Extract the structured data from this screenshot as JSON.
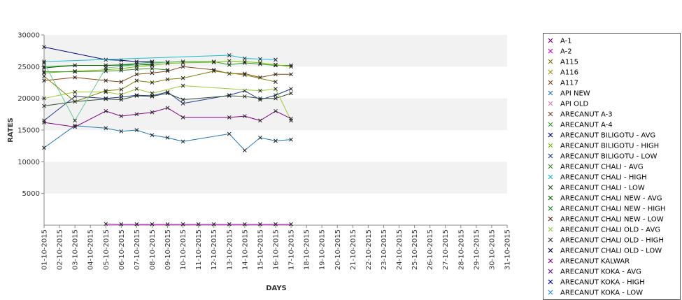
{
  "chart_data": {
    "type": "line",
    "xlabel": "DAYS",
    "ylabel": "RATES",
    "ylim": [
      0,
      30000
    ],
    "y_ticks": [
      5000,
      10000,
      15000,
      20000,
      25000,
      30000
    ],
    "grid": "alternating horizontal bands",
    "legend_position": "right",
    "categories": [
      "01-10-2015",
      "02-10-2015",
      "03-10-2015",
      "04-10-2015",
      "05-10-2015",
      "06-10-2015",
      "07-10-2015",
      "08-10-2015",
      "09-10-2015",
      "10-10-2015",
      "11-10-2015",
      "12-10-2015",
      "13-10-2015",
      "14-10-2015",
      "15-10-2015",
      "16-10-2015",
      "17-10-2015",
      "18-10-2015",
      "19-10-2015",
      "20-10-2015",
      "21-10-2015",
      "22-10-2015",
      "23-10-2015",
      "24-10-2015",
      "25-10-2015",
      "26-10-2015",
      "27-10-2015",
      "28-10-2015",
      "29-10-2015",
      "30-10-2015",
      "31-10-2015"
    ],
    "series": [
      {
        "name": "A-1",
        "color": "#800080",
        "values": [
          null,
          null,
          null,
          null,
          null,
          null,
          null,
          null,
          null,
          null,
          null,
          null,
          null,
          null,
          null,
          null,
          null,
          null,
          null,
          null,
          null,
          null,
          null,
          null,
          null,
          null,
          null,
          null,
          null,
          null,
          null
        ]
      },
      {
        "name": "A-2",
        "color": "#cc00cc",
        "values": [
          null,
          null,
          null,
          null,
          200,
          150,
          150,
          150,
          150,
          150,
          150,
          150,
          150,
          150,
          150,
          150,
          150,
          null,
          null,
          null,
          null,
          null,
          null,
          null,
          null,
          null,
          null,
          null,
          null,
          null,
          null
        ]
      },
      {
        "name": "A115",
        "color": "#7f7f00",
        "values": [
          null,
          null,
          null,
          null,
          null,
          null,
          null,
          null,
          null,
          null,
          null,
          null,
          null,
          null,
          null,
          null,
          null,
          null,
          null,
          null,
          null,
          null,
          null,
          null,
          null,
          null,
          null,
          null,
          null,
          null,
          null
        ]
      },
      {
        "name": "A116",
        "color": "#999900",
        "values": [
          null,
          null,
          null,
          null,
          null,
          null,
          null,
          null,
          null,
          null,
          null,
          null,
          null,
          null,
          null,
          null,
          null,
          null,
          null,
          null,
          null,
          null,
          null,
          null,
          null,
          null,
          null,
          null,
          null,
          null,
          null
        ]
      },
      {
        "name": "A117",
        "color": "#8b4513",
        "values": [
          22800,
          null,
          23300,
          null,
          22800,
          22600,
          23800,
          24000,
          24300,
          25000,
          null,
          24500,
          23900,
          23900,
          23300,
          23800,
          23800,
          null,
          null,
          null,
          null,
          null,
          null,
          null,
          null,
          null,
          null,
          null,
          null,
          null,
          null
        ]
      },
      {
        "name": "API NEW",
        "color": "#1f77b4",
        "values": [
          12200,
          null,
          15700,
          null,
          15300,
          14800,
          15000,
          14200,
          13800,
          13200,
          null,
          null,
          14400,
          11800,
          13800,
          13300,
          13500,
          null,
          null,
          null,
          null,
          null,
          null,
          null,
          null,
          null,
          null,
          null,
          null,
          null,
          null
        ]
      },
      {
        "name": "API OLD",
        "color": "#e377c2",
        "values": [
          null,
          null,
          null,
          null,
          null,
          null,
          null,
          null,
          null,
          null,
          null,
          null,
          null,
          null,
          null,
          null,
          null,
          null,
          null,
          null,
          null,
          null,
          null,
          null,
          null,
          null,
          null,
          null,
          null,
          null,
          null
        ]
      },
      {
        "name": "ARECANUT A-3",
        "color": "#6b4c2a",
        "values": [
          null,
          null,
          null,
          null,
          null,
          null,
          null,
          null,
          null,
          null,
          null,
          null,
          null,
          null,
          null,
          null,
          null,
          null,
          null,
          null,
          null,
          null,
          null,
          null,
          null,
          null,
          null,
          null,
          null,
          null,
          null
        ]
      },
      {
        "name": "ARECANUT A-4",
        "color": "#2ca02c",
        "values": [
          25000,
          null,
          25200,
          null,
          25200,
          25300,
          25500,
          25700,
          25700,
          25800,
          null,
          25800,
          25300,
          25600,
          25400,
          25200,
          25200,
          null,
          null,
          null,
          null,
          null,
          null,
          null,
          null,
          null,
          null,
          null,
          null,
          null,
          null
        ]
      },
      {
        "name": "ARECANUT BILIGOTU - AVG",
        "color": "#000080",
        "values": [
          28100,
          null,
          null,
          null,
          26100,
          26000,
          25800,
          25800,
          null,
          null,
          null,
          null,
          null,
          null,
          null,
          null,
          null,
          null,
          null,
          null,
          null,
          null,
          null,
          null,
          null,
          null,
          null,
          null,
          null,
          null,
          null
        ]
      },
      {
        "name": "ARECANUT BILIGOTU - HIGH",
        "color": "#7fbf00",
        "values": [
          24000,
          null,
          24300,
          null,
          24500,
          24700,
          25000,
          25200,
          25500,
          25600,
          null,
          25700,
          25900,
          25800,
          25600,
          25300,
          25000,
          null,
          null,
          null,
          null,
          null,
          null,
          null,
          null,
          null,
          null,
          null,
          null,
          null,
          null
        ]
      },
      {
        "name": "ARECANUT BILIGOTU - LOW",
        "color": "#1f3a93",
        "values": [
          16500,
          null,
          20300,
          null,
          20000,
          20200,
          20500,
          20400,
          21000,
          19200,
          null,
          null,
          20500,
          21200,
          19800,
          20500,
          21500,
          null,
          null,
          null,
          null,
          null,
          null,
          null,
          null,
          null,
          null,
          null,
          null,
          null,
          null
        ]
      },
      {
        "name": "ARECANUT CHALI - AVG",
        "color": "#3c8d2f",
        "values": [
          24200,
          null,
          24200,
          null,
          24300,
          24400,
          24600,
          24700,
          24500,
          null,
          null,
          null,
          null,
          null,
          null,
          null,
          null,
          null,
          null,
          null,
          null,
          null,
          null,
          null,
          null,
          null,
          null,
          null,
          null,
          null,
          null
        ]
      },
      {
        "name": "ARECANUT CHALI - HIGH",
        "color": "#17becf",
        "values": [
          25800,
          null,
          null,
          null,
          null,
          null,
          null,
          null,
          null,
          null,
          null,
          null,
          26800,
          26300,
          26200,
          26100,
          null,
          null,
          null,
          null,
          null,
          null,
          null,
          null,
          null,
          null,
          null,
          null,
          null,
          null,
          null
        ]
      },
      {
        "name": "ARECANUT CHALI - LOW",
        "color": "#2f4f2f",
        "values": [
          18800,
          null,
          19500,
          null,
          19900,
          19800,
          20400,
          20300,
          20800,
          19800,
          null,
          null,
          20400,
          20300,
          20000,
          20000,
          20800,
          null,
          null,
          null,
          null,
          null,
          null,
          null,
          null,
          null,
          null,
          null,
          null,
          null,
          null
        ]
      },
      {
        "name": "ARECANUT CHALI NEW - AVG",
        "color": "#006400",
        "values": [
          24800,
          null,
          25200,
          null,
          25200,
          null,
          25300,
          25300,
          null,
          null,
          null,
          null,
          null,
          null,
          null,
          null,
          null,
          null,
          null,
          null,
          null,
          null,
          null,
          null,
          null,
          null,
          null,
          null,
          null,
          null,
          null
        ]
      },
      {
        "name": "ARECANUT CHALI NEW - HIGH",
        "color": "#228b22",
        "values": [
          null,
          null,
          null,
          null,
          null,
          null,
          null,
          null,
          null,
          null,
          null,
          null,
          null,
          null,
          null,
          null,
          null,
          null,
          null,
          null,
          null,
          null,
          null,
          null,
          null,
          null,
          null,
          null,
          null,
          null,
          null
        ]
      },
      {
        "name": "ARECANUT CHALI NEW - LOW",
        "color": "#5a1e1e",
        "values": [
          null,
          null,
          null,
          null,
          null,
          null,
          null,
          null,
          null,
          null,
          null,
          null,
          null,
          null,
          null,
          null,
          null,
          null,
          null,
          null,
          null,
          null,
          null,
          null,
          null,
          null,
          null,
          null,
          null,
          null,
          null
        ]
      },
      {
        "name": "ARECANUT CHALI OLD - AVG",
        "color": "#9acd32",
        "values": [
          20000,
          null,
          21000,
          null,
          21000,
          20600,
          21500,
          20800,
          null,
          22000,
          null,
          null,
          null,
          null,
          21200,
          21500,
          16500,
          null,
          null,
          null,
          null,
          null,
          null,
          null,
          null,
          null,
          null,
          null,
          null,
          null,
          null
        ]
      },
      {
        "name": "ARECANUT CHALI OLD - HIGH",
        "color": "#333333",
        "values": [
          null,
          null,
          null,
          null,
          null,
          null,
          null,
          null,
          null,
          null,
          null,
          null,
          null,
          null,
          null,
          null,
          null,
          null,
          null,
          null,
          null,
          null,
          null,
          null,
          null,
          null,
          null,
          null,
          null,
          null,
          null
        ]
      },
      {
        "name": "ARECANUT CHALI OLD - LOW",
        "color": "#000040",
        "values": [
          null,
          null,
          null,
          null,
          null,
          null,
          null,
          null,
          null,
          null,
          null,
          null,
          null,
          null,
          null,
          null,
          null,
          null,
          null,
          null,
          null,
          null,
          null,
          null,
          null,
          null,
          null,
          null,
          null,
          null,
          null
        ]
      },
      {
        "name": "ARECANUT KALWAR",
        "color": "#800080",
        "values": [
          16200,
          null,
          15500,
          null,
          18000,
          17200,
          17500,
          17800,
          18500,
          17000,
          null,
          null,
          17000,
          17200,
          16500,
          18000,
          16800,
          null,
          null,
          null,
          null,
          null,
          null,
          null,
          null,
          null,
          null,
          null,
          null,
          null,
          null
        ]
      },
      {
        "name": "ARECANUT KOKA - AVG",
        "color": "#6a0dad",
        "values": [
          null,
          null,
          null,
          null,
          null,
          null,
          null,
          null,
          null,
          null,
          null,
          null,
          null,
          null,
          null,
          null,
          null,
          null,
          null,
          null,
          null,
          null,
          null,
          null,
          null,
          null,
          null,
          null,
          null,
          null,
          null
        ]
      },
      {
        "name": "ARECANUT KOKA - HIGH",
        "color": "#0000a0",
        "values": [
          null,
          null,
          null,
          null,
          null,
          null,
          null,
          null,
          null,
          null,
          null,
          null,
          null,
          null,
          null,
          null,
          null,
          null,
          null,
          null,
          null,
          null,
          null,
          null,
          null,
          null,
          null,
          null,
          null,
          null,
          null
        ]
      },
      {
        "name": "ARECANUT KOKA - LOW",
        "color": "#1e90ff",
        "values": [
          null,
          null,
          null,
          null,
          null,
          null,
          null,
          null,
          null,
          null,
          null,
          null,
          null,
          null,
          null,
          null,
          null,
          null,
          null,
          null,
          null,
          null,
          null,
          null,
          null,
          null,
          null,
          null,
          null,
          null,
          null
        ]
      },
      {
        "name": "",
        "color": "#66cc99",
        "values": [
          25600,
          null,
          16500,
          null,
          24800,
          25000,
          25300,
          25500,
          25700,
          null,
          null,
          null,
          null,
          null,
          null,
          null,
          null,
          null,
          null,
          null,
          null,
          null,
          null,
          null,
          null,
          null,
          null,
          null,
          null,
          null,
          null
        ]
      },
      {
        "name": "",
        "color": "#808000",
        "values": [
          23500,
          null,
          19500,
          null,
          21200,
          21400,
          22800,
          22500,
          23000,
          23200,
          null,
          24300,
          null,
          23700,
          null,
          22600,
          null,
          null,
          null,
          null,
          null,
          null,
          null,
          null,
          null,
          null,
          null,
          null,
          null,
          null,
          null
        ]
      }
    ]
  }
}
